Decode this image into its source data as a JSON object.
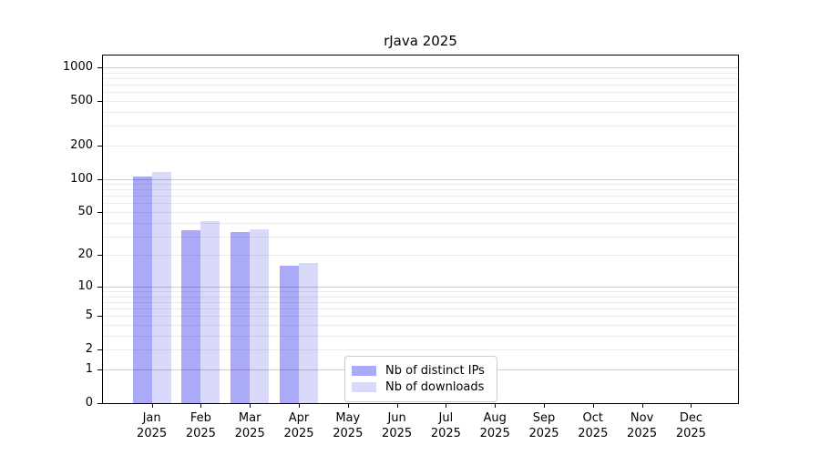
{
  "chart_data": {
    "type": "bar",
    "title": "rJava 2025",
    "xlabel": "",
    "ylabel": "",
    "yscale": "log1p",
    "ylim": [
      0,
      1275
    ],
    "yticks": [
      0,
      1,
      2,
      5,
      10,
      20,
      50,
      100,
      200,
      500,
      1000
    ],
    "grid": {
      "major": [
        1,
        10,
        100,
        1000
      ],
      "minor": [
        2,
        3,
        4,
        5,
        6,
        7,
        8,
        9,
        20,
        30,
        40,
        50,
        60,
        70,
        80,
        90,
        200,
        300,
        400,
        500,
        600,
        700,
        800,
        900
      ],
      "on": true
    },
    "categories": [
      "Jan",
      "Feb",
      "Mar",
      "Apr",
      "May",
      "Jun",
      "Jul",
      "Aug",
      "Sep",
      "Oct",
      "Nov",
      "Dec"
    ],
    "x_year": "2025",
    "series": [
      {
        "name": "Nb of distinct IPs",
        "color": "#aaaaf8",
        "values": [
          105,
          34,
          33,
          16,
          0,
          0,
          0,
          0,
          0,
          0,
          0,
          0
        ]
      },
      {
        "name": "Nb of downloads",
        "color": "#d9d9fa",
        "values": [
          116,
          41,
          35,
          17,
          0,
          0,
          0,
          0,
          0,
          0,
          0,
          0
        ]
      }
    ],
    "legend": {
      "position": "bottom-center"
    }
  }
}
